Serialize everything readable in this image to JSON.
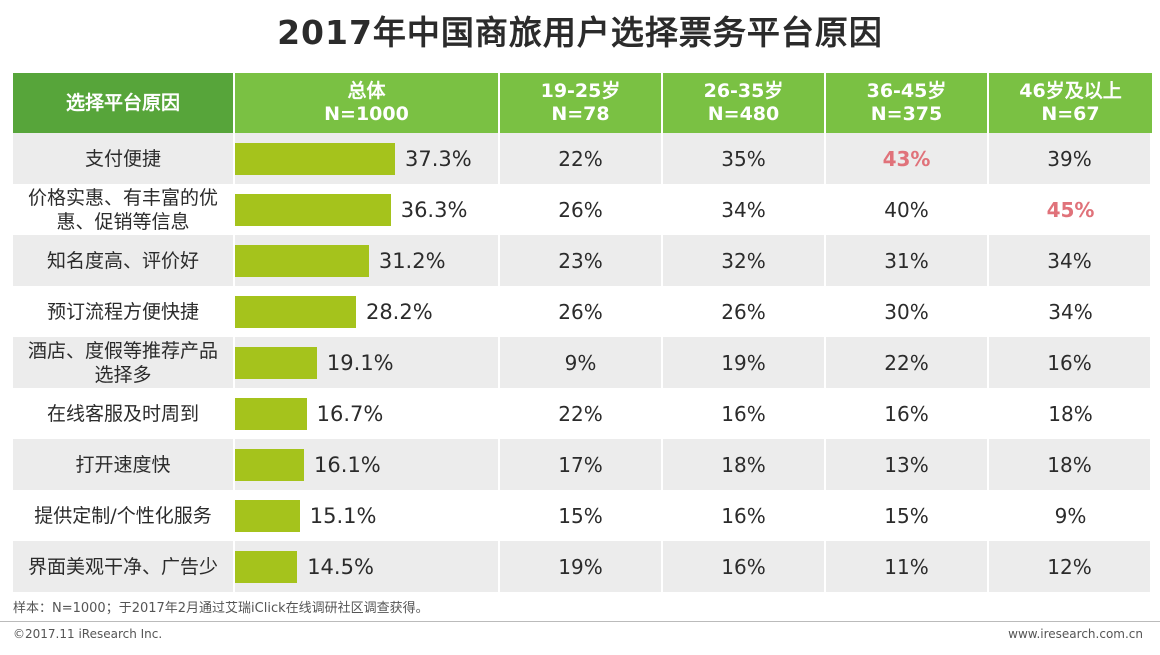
{
  "title": "2017年中国商旅用户选择票务平台原因",
  "header": {
    "reason_label": "选择平台原因",
    "columns": [
      {
        "line1": "总体",
        "line2": "N=1000"
      },
      {
        "line1": "19-25岁",
        "line2": "N=78"
      },
      {
        "line1": "26-35岁",
        "line2": "N=480"
      },
      {
        "line1": "36-45岁",
        "line2": "N=375"
      },
      {
        "line1": "46岁及以上",
        "line2": "N=67"
      }
    ]
  },
  "chart_data": {
    "type": "table",
    "title": "2017年中国商旅用户选择票务平台原因",
    "columns": [
      "选择平台原因",
      "总体 N=1000",
      "19-25岁 N=78",
      "26-35岁 N=480",
      "36-45岁 N=375",
      "46岁及以上 N=67"
    ],
    "categories": [
      "支付便捷",
      "价格实惠、有丰富的优惠、促销等信息",
      "知名度高、评价好",
      "预订流程方便快捷",
      "酒店、度假等推荐产品选择多",
      "在线客服及时周到",
      "打开速度快",
      "提供定制/个性化服务",
      "界面美观干净、广告少"
    ],
    "rows": [
      {
        "reason": [
          "支付便捷"
        ],
        "total": 37.3,
        "total_label": "37.3%",
        "ages": [
          "22%",
          "35%",
          "43%",
          "39%"
        ],
        "highlight": 2
      },
      {
        "reason": [
          "价格实惠、有丰富的优",
          "惠、促销等信息"
        ],
        "total": 36.3,
        "total_label": "36.3%",
        "ages": [
          "26%",
          "34%",
          "40%",
          "45%"
        ],
        "highlight": 3
      },
      {
        "reason": [
          "知名度高、评价好"
        ],
        "total": 31.2,
        "total_label": "31.2%",
        "ages": [
          "23%",
          "32%",
          "31%",
          "34%"
        ],
        "highlight": -1
      },
      {
        "reason": [
          "预订流程方便快捷"
        ],
        "total": 28.2,
        "total_label": "28.2%",
        "ages": [
          "26%",
          "26%",
          "30%",
          "34%"
        ],
        "highlight": -1
      },
      {
        "reason": [
          "酒店、度假等推荐产品",
          "选择多"
        ],
        "total": 19.1,
        "total_label": "19.1%",
        "ages": [
          "9%",
          "19%",
          "22%",
          "16%"
        ],
        "highlight": -1
      },
      {
        "reason": [
          "在线客服及时周到"
        ],
        "total": 16.7,
        "total_label": "16.7%",
        "ages": [
          "22%",
          "16%",
          "16%",
          "18%"
        ],
        "highlight": -1
      },
      {
        "reason": [
          "打开速度快"
        ],
        "total": 16.1,
        "total_label": "16.1%",
        "ages": [
          "17%",
          "18%",
          "13%",
          "18%"
        ],
        "highlight": -1
      },
      {
        "reason": [
          "提供定制/个性化服务"
        ],
        "total": 15.1,
        "total_label": "15.1%",
        "ages": [
          "15%",
          "16%",
          "15%",
          "9%"
        ],
        "highlight": -1
      },
      {
        "reason": [
          "界面美观干净、广告少"
        ],
        "total": 14.5,
        "total_label": "14.5%",
        "ages": [
          "19%",
          "16%",
          "11%",
          "12%"
        ],
        "highlight": -1
      }
    ],
    "bar_max": 100
  },
  "colors": {
    "header_first": "#57a53a",
    "header": "#7ac143",
    "bar": "#a5c31c",
    "highlight": "#e0727a",
    "row_gray": "#ececec"
  },
  "footer": {
    "note": "样本：N=1000；于2017年2月通过艾瑞iClick在线调研社区调查获得。",
    "copyright": "©2017.11 iResearch Inc.",
    "website": "www.iresearch.com.cn"
  }
}
